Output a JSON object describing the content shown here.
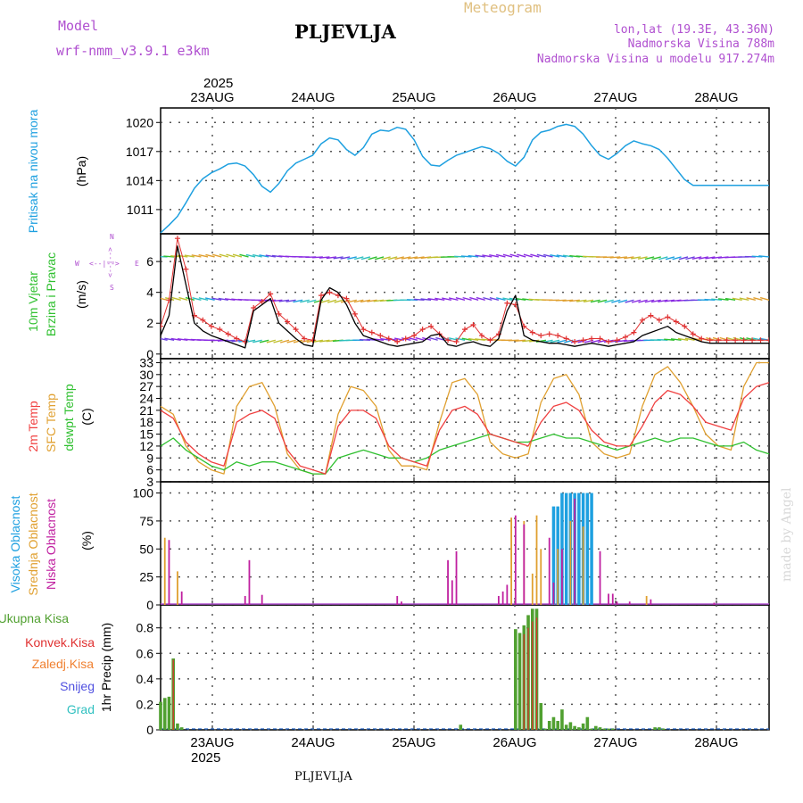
{
  "header": {
    "model_label": "Model",
    "model_name": "wrf-nmm_v3.9.1  e3km",
    "station": "PLJEVLJA",
    "meteogram": "Meteogram",
    "lonlat": "lon,lat (19.3E, 43.36N)",
    "elevation": "Nadmorska Visina 788m",
    "model_elevation": "Nadmorska Visina u modelu 917.274m",
    "year": "2025",
    "footer_station": "PLJEVLJA",
    "watermark": "made by Angel"
  },
  "colors": {
    "pressure": "#1ea0e0",
    "temp2m": "#f04040",
    "sfc": "#e0a030",
    "dew": "#30c030",
    "high_cloud": "#1ea0e0",
    "mid_cloud": "#e0a030",
    "low_cloud": "#c020a0",
    "total_precip": "#50a030",
    "conv_precip": "#e03030",
    "frz_precip": "#f08030",
    "snow": "#5050e0",
    "hail": "#30c0c0",
    "wind_speed": "#000000",
    "gust": "#e03030"
  },
  "panels": {
    "pressure": {
      "label": "Pritisak na nivou mora",
      "unit": "(hPa)"
    },
    "wind": {
      "label1": "10m Vjetar",
      "label2": "Brzina i Pravac",
      "unit": "(m/s)",
      "compass_top": "N",
      "compass_left": "W",
      "compass_right": "E",
      "compass_bottom": "S",
      "compass_arrows_h": "<--|-->",
      "compass_arrows_v": "<--|-->"
    },
    "temp": {
      "label1": "2m Temp",
      "label2": "SFC Temp",
      "label3": "dewpt Temp",
      "unit": "(C)"
    },
    "cloud": {
      "label1": "Visoka Oblacnost",
      "label2": "Srednja Oblacnost",
      "label3": "Niska Oblacnost",
      "unit": "(%)"
    },
    "precip": {
      "label1": "Ukupna Kisa",
      "label2": "Konvek.Kisa",
      "label3": "Zaledj.Kisa",
      "label4": "Snijeg",
      "label5": "Grad",
      "unit": "1hr Precip (mm)"
    }
  },
  "chart_data": [
    {
      "type": "line",
      "title": "Pritisak na nivou mora",
      "ylabel": "(hPa)",
      "x_unit": "hours from 22AUG 12:00",
      "ylim": [
        1008.5,
        1021.5
      ],
      "yticks": [
        1011,
        1014,
        1017,
        1020
      ],
      "xticks": [
        "23AUG",
        "24AUG",
        "25AUG",
        "26AUG",
        "27AUG",
        "28AUG"
      ],
      "series": [
        {
          "name": "Pressure",
          "x": [
            0,
            2,
            4,
            6,
            8,
            10,
            12,
            14,
            16,
            18,
            20,
            22,
            24,
            26,
            28,
            30,
            32,
            34,
            36,
            38,
            40,
            42,
            44,
            46,
            48,
            50,
            52,
            54,
            56,
            58,
            60,
            62,
            64,
            66,
            68,
            70,
            72,
            74,
            76,
            78,
            80,
            82,
            84,
            86,
            88,
            90,
            92,
            94,
            96,
            98,
            100,
            102,
            104,
            106,
            108,
            110,
            112,
            114,
            116,
            118,
            120,
            122,
            124,
            126,
            128,
            130,
            132,
            134,
            136,
            138,
            140,
            142,
            144
          ],
          "y": [
            1008.6,
            1009.4,
            1010.3,
            1011.7,
            1013.2,
            1014.2,
            1014.8,
            1015.2,
            1015.7,
            1015.8,
            1015.5,
            1014.6,
            1013.4,
            1012.8,
            1013.7,
            1015.0,
            1015.8,
            1016.2,
            1016.6,
            1017.8,
            1018.4,
            1018.2,
            1017.2,
            1016.6,
            1017.4,
            1018.8,
            1019.2,
            1019.1,
            1019.5,
            1019.3,
            1018.2,
            1016.5,
            1015.6,
            1015.5,
            1016.1,
            1016.6,
            1016.9,
            1017.2,
            1017.5,
            1017.3,
            1016.8,
            1016.0,
            1015.5,
            1016.4,
            1018.2,
            1019.0,
            1019.2,
            1019.6,
            1019.8,
            1019.6,
            1018.8,
            1017.6,
            1016.6,
            1016.2,
            1016.8,
            1017.6,
            1018.1,
            1017.8,
            1017.6,
            1017.2,
            1016.3,
            1015.2,
            1014.1,
            1013.5,
            1013.5,
            1013.5,
            1013.5,
            1013.5,
            1013.5,
            1013.5,
            1013.5,
            1013.5,
            1013.5
          ]
        }
      ]
    },
    {
      "type": "line",
      "title": "10m Vjetar Brzina i Pravac",
      "ylabel": "(m/s)",
      "ylim": [
        -0.3,
        7.8
      ],
      "yticks": [
        0,
        2,
        4,
        6
      ],
      "series": [
        {
          "name": "Wind speed",
          "x": [
            0,
            2,
            4,
            6,
            8,
            10,
            12,
            14,
            16,
            18,
            20,
            22,
            24,
            26,
            28,
            30,
            32,
            34,
            36,
            38,
            40,
            42,
            44,
            46,
            48,
            50,
            52,
            54,
            56,
            58,
            60,
            62,
            64,
            66,
            68,
            70,
            72,
            74,
            76,
            78,
            80,
            82,
            84,
            86,
            88,
            90,
            92,
            94,
            96,
            98,
            100,
            102,
            104,
            106,
            108,
            110,
            112,
            114,
            116,
            118,
            120,
            122,
            124,
            126,
            128,
            130,
            132,
            134,
            136,
            138,
            140,
            142,
            144
          ],
          "y": [
            1.2,
            2.5,
            7.0,
            4.5,
            2.0,
            1.5,
            1.2,
            1.0,
            0.8,
            0.6,
            0.4,
            2.8,
            3.2,
            3.6,
            2.0,
            1.5,
            1.0,
            0.6,
            0.5,
            3.5,
            4.3,
            4.0,
            3.2,
            2.0,
            1.2,
            1.0,
            0.8,
            0.6,
            0.5,
            0.6,
            0.7,
            0.8,
            1.2,
            1.3,
            0.6,
            0.5,
            0.7,
            0.8,
            0.6,
            0.5,
            1.0,
            2.8,
            3.8,
            1.2,
            0.9,
            0.8,
            0.7,
            0.7,
            0.6,
            0.5,
            0.6,
            0.7,
            0.6,
            0.5,
            0.6,
            0.7,
            0.8,
            1.2,
            1.4,
            1.6,
            1.8,
            1.4,
            1.2,
            1.0,
            0.8,
            0.7,
            0.7,
            0.7,
            0.7,
            0.7,
            0.7,
            0.7,
            0.7
          ]
        },
        {
          "name": "Gust",
          "x": [
            0,
            2,
            4,
            6,
            8,
            10,
            12,
            14,
            16,
            18,
            20,
            22,
            24,
            26,
            28,
            30,
            32,
            34,
            36,
            38,
            40,
            42,
            44,
            46,
            48,
            50,
            52,
            54,
            56,
            58,
            60,
            62,
            64,
            66,
            68,
            70,
            72,
            74,
            76,
            78,
            80,
            82,
            84,
            86,
            88,
            90,
            92,
            94,
            96,
            98,
            100,
            102,
            104,
            106,
            108,
            110,
            112,
            114,
            116,
            118,
            120,
            122,
            124,
            126,
            128,
            130,
            132,
            134,
            136,
            138,
            140,
            142,
            144
          ],
          "y": [
            1.8,
            3.5,
            7.5,
            5.5,
            2.5,
            2.2,
            1.8,
            1.6,
            1.3,
            1.0,
            0.8,
            3.0,
            3.4,
            3.9,
            2.6,
            2.1,
            1.6,
            1.0,
            0.9,
            3.8,
            4.0,
            3.8,
            3.6,
            2.6,
            1.6,
            1.4,
            1.2,
            1.0,
            0.8,
            1.0,
            1.2,
            1.6,
            1.8,
            1.3,
            0.9,
            0.8,
            1.6,
            1.9,
            1.2,
            0.9,
            1.3,
            3.3,
            3.2,
            1.8,
            1.4,
            1.2,
            1.3,
            1.2,
            1.0,
            0.8,
            0.9,
            1.0,
            1.0,
            0.8,
            0.9,
            1.1,
            1.4,
            2.2,
            2.5,
            2.2,
            2.4,
            2.1,
            1.8,
            1.3,
            1.0,
            0.9,
            0.9,
            0.9,
            0.9,
            0.9,
            0.9,
            0.9,
            0.9
          ]
        }
      ]
    },
    {
      "type": "line",
      "title": "2m Temp / SFC Temp / dewpt Temp",
      "ylabel": "(C)",
      "ylim": [
        3,
        34
      ],
      "yticks": [
        3,
        6,
        9,
        12,
        15,
        18,
        21,
        24,
        27,
        30,
        33
      ],
      "series": [
        {
          "name": "2m Temp",
          "x": [
            0,
            3,
            6,
            9,
            12,
            15,
            18,
            21,
            24,
            27,
            30,
            33,
            36,
            39,
            42,
            45,
            48,
            51,
            54,
            57,
            60,
            63,
            66,
            69,
            72,
            75,
            78,
            81,
            84,
            87,
            90,
            93,
            96,
            99,
            102,
            105,
            108,
            111,
            114,
            117,
            120,
            123,
            126,
            129,
            132,
            135,
            138,
            141,
            144
          ],
          "y": [
            21,
            19,
            13,
            10,
            8,
            7,
            18,
            20,
            21,
            19,
            11,
            7,
            6,
            5,
            17,
            21,
            21,
            19,
            12,
            9,
            8,
            7,
            16,
            21,
            22,
            20,
            15,
            14,
            13,
            12,
            18,
            22,
            23,
            21,
            16,
            13,
            12,
            12,
            17,
            23,
            26,
            25,
            22,
            18,
            17,
            16,
            24,
            27,
            28
          ]
        },
        {
          "name": "SFC Temp",
          "x": [
            0,
            3,
            6,
            9,
            12,
            15,
            18,
            21,
            24,
            27,
            30,
            33,
            36,
            39,
            42,
            45,
            48,
            51,
            54,
            57,
            60,
            63,
            66,
            69,
            72,
            75,
            78,
            81,
            84,
            87,
            90,
            93,
            96,
            99,
            102,
            105,
            108,
            111,
            114,
            117,
            120,
            123,
            126,
            129,
            132,
            135,
            138,
            141,
            144
          ],
          "y": [
            22,
            20,
            12,
            8,
            6,
            5,
            22,
            27,
            28,
            22,
            10,
            6,
            5,
            5,
            20,
            27,
            26,
            22,
            11,
            7,
            7,
            6,
            18,
            28,
            29,
            25,
            13,
            10,
            9,
            10,
            23,
            29,
            30,
            25,
            13,
            10,
            9,
            10,
            22,
            30,
            32,
            28,
            22,
            15,
            12,
            11,
            27,
            33,
            33
          ]
        },
        {
          "name": "dewpt Temp",
          "x": [
            0,
            3,
            6,
            9,
            12,
            15,
            18,
            21,
            24,
            27,
            30,
            33,
            36,
            39,
            42,
            45,
            48,
            51,
            54,
            57,
            60,
            63,
            66,
            69,
            72,
            75,
            78,
            81,
            84,
            87,
            90,
            93,
            96,
            99,
            102,
            105,
            108,
            111,
            114,
            117,
            120,
            123,
            126,
            129,
            132,
            135,
            138,
            141,
            144
          ],
          "y": [
            12,
            14,
            11,
            9,
            7,
            6,
            8,
            7,
            8,
            8,
            7,
            6,
            5,
            5,
            9,
            10,
            11,
            10,
            9,
            9,
            8,
            9,
            11,
            12,
            13,
            14,
            15,
            14,
            13,
            13,
            14,
            15,
            14,
            14,
            13,
            12,
            11,
            12,
            13,
            14,
            13,
            14,
            14,
            13,
            12,
            12,
            13,
            11,
            10
          ]
        }
      ]
    },
    {
      "type": "bar",
      "title": "Visoka / Srednja / Niska Oblacnost",
      "ylabel": "(%)",
      "ylim": [
        0,
        110
      ],
      "yticks": [
        0,
        25,
        50,
        75,
        100
      ],
      "series": [
        {
          "name": "Visoka Oblacnost",
          "x": [
            93,
            94,
            95,
            96,
            97,
            98,
            99,
            100,
            101,
            102
          ],
          "values": [
            88,
            88,
            100,
            100,
            100,
            100,
            100,
            100,
            100,
            100
          ]
        },
        {
          "name": "Srednja Oblacnost",
          "x": [
            1,
            4,
            83,
            86,
            88,
            89,
            90,
            94,
            97,
            100,
            115
          ],
          "values": [
            60,
            30,
            78,
            75,
            28,
            80,
            50,
            50,
            75,
            70,
            8
          ]
        },
        {
          "name": "Niska Oblacnost",
          "x": [
            2,
            5,
            20,
            21,
            24,
            56,
            57,
            68,
            69,
            70,
            80,
            81,
            82,
            84,
            86,
            92,
            93,
            95,
            98,
            104,
            106,
            107,
            108,
            111,
            116,
            131
          ],
          "values": [
            58,
            12,
            8,
            40,
            9,
            8,
            3,
            40,
            22,
            48,
            8,
            12,
            18,
            80,
            72,
            60,
            20,
            50,
            95,
            48,
            10,
            10,
            3,
            3,
            5,
            2
          ]
        }
      ]
    },
    {
      "type": "bar",
      "title": "1hr Precip",
      "ylabel": "1hr Precip (mm)",
      "ylim": [
        0,
        0.98
      ],
      "yticks": [
        0,
        0.2,
        0.4,
        0.6,
        0.8
      ],
      "series": [
        {
          "name": "Ukupna Kisa",
          "x": [
            0,
            1,
            2,
            3,
            4,
            5,
            71,
            84,
            85,
            86,
            87,
            88,
            89,
            90,
            91,
            92,
            93,
            94,
            95,
            96,
            97,
            98,
            99,
            100,
            101,
            102,
            103,
            104,
            105,
            106,
            107,
            117,
            118,
            119
          ],
          "y": [
            0.22,
            0.25,
            0.26,
            0.56,
            0.05,
            0.02,
            0.04,
            0.79,
            0.76,
            0.82,
            0.9,
            0.95,
            0.95,
            0.21,
            0.01,
            0.07,
            0.1,
            0.07,
            0.16,
            0.04,
            0.06,
            0.03,
            0.02,
            0.05,
            0.1,
            0.01,
            0.03,
            0.02,
            0.01,
            0.01,
            0.01,
            0.02,
            0.02,
            0.01
          ]
        },
        {
          "name": "Konvek.Kisa",
          "x": [
            3,
            86,
            87,
            88,
            89
          ],
          "y": [
            0.55,
            0.75,
            0.8,
            0.85,
            0.88
          ]
        }
      ]
    }
  ]
}
